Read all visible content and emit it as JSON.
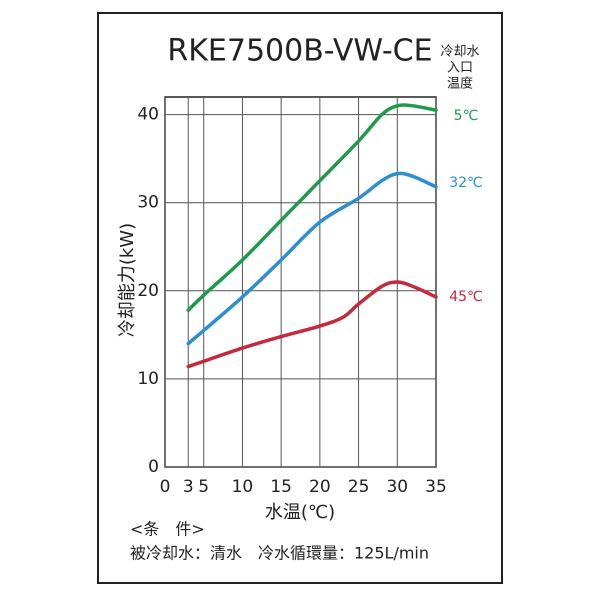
{
  "chart_data": {
    "type": "line",
    "title": "RKE7500B-VW-CE",
    "legend_title": [
      "冷却水",
      "入口",
      "温度"
    ],
    "y_label": "冷却能力(kW)",
    "x_label": "水温(℃)",
    "notes": [
      "<条　件>",
      "被冷却水：清水　冷水循環量：125L/min"
    ],
    "xlim": [
      0,
      35
    ],
    "xticks": [
      0,
      3,
      5,
      10,
      15,
      20,
      25,
      30,
      35
    ],
    "ylim": [
      0,
      42
    ],
    "yticks": [
      0,
      10,
      20,
      30,
      40
    ],
    "grid": true,
    "series": [
      {
        "name": "5℃",
        "color": "#1f9a4c",
        "x": [
          3,
          5,
          10,
          15,
          20,
          25,
          28,
          30,
          32,
          35
        ],
        "values": [
          17.8,
          19.5,
          23.5,
          28,
          32.5,
          37,
          40,
          41,
          41,
          40.5
        ]
      },
      {
        "name": "32℃",
        "color": "#2b8fd2",
        "x": [
          3,
          5,
          10,
          15,
          20,
          25,
          28,
          30,
          32,
          35
        ],
        "values": [
          14,
          15.5,
          19.3,
          23.5,
          27.8,
          30.5,
          32.5,
          33.3,
          33,
          31.8
        ]
      },
      {
        "name": "45℃",
        "color": "#c42a3c",
        "x": [
          3,
          5,
          10,
          15,
          20,
          23,
          25,
          28,
          30,
          32,
          35
        ],
        "values": [
          11.4,
          12,
          13.5,
          14.8,
          16,
          17,
          18.5,
          20.5,
          21,
          20.5,
          19.3
        ]
      }
    ]
  }
}
